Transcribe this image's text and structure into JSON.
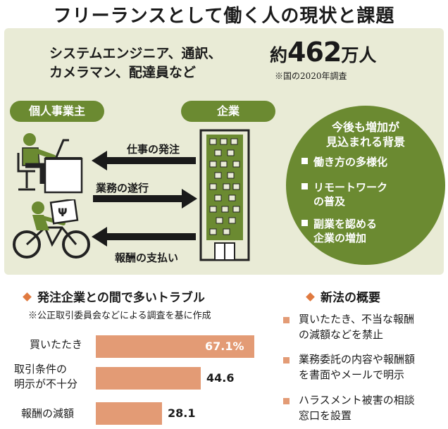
{
  "title": "フリーランスとして働く人の現状と課題",
  "summary": {
    "occupations": [
      "システムエンジニア、通訳、",
      "カメラマン、配達員など"
    ],
    "count_prefix": "約",
    "count_number": "462",
    "count_suffix": "万人",
    "count_note": "※国の2020年調査"
  },
  "labels": {
    "individual": "個人事業主",
    "company": "企業"
  },
  "flows": [
    {
      "label": "仕事の発注",
      "direction": "company-to-individual"
    },
    {
      "label": "業務の遂行",
      "direction": "individual-to-company"
    },
    {
      "label": "報酬の支払い",
      "direction": "company-to-individual"
    }
  ],
  "background": {
    "title_lines": [
      "今後も増加が",
      "見込まれる背景"
    ],
    "items": [
      [
        "働き方の多様化"
      ],
      [
        "リモートワーク",
        "の普及"
      ],
      [
        "副業を認める",
        "企業の増加"
      ]
    ]
  },
  "trouble": {
    "heading": "発注企業との間で多いトラブル",
    "note": "※公正取引委員会などによる調査を基に作成"
  },
  "chart_data": {
    "type": "bar",
    "orientation": "horizontal",
    "categories": [
      "買いたたき",
      "取引条件の明示が不十分",
      "報酬の減額"
    ],
    "category_label_lines": [
      [
        "買いたたき"
      ],
      [
        "取引条件の",
        "明示が不十分"
      ],
      [
        "報酬の減額"
      ]
    ],
    "value_labels": [
      "67.1%",
      "44.6",
      "28.1"
    ],
    "values": [
      67.1,
      44.6,
      28.1
    ],
    "unit": "%",
    "color": "#e39b75"
  },
  "law": {
    "heading": "新法の概要",
    "items": [
      [
        "買いたたき、不当な報酬",
        "の減額などを禁止"
      ],
      [
        "業務委託の内容や報酬額",
        "を書面やメールで明示"
      ],
      [
        "ハラスメント被害の相談",
        "窓口を設置"
      ]
    ]
  },
  "colors": {
    "green": "#6b8a31",
    "panel": "#e9ebd6",
    "orange": "#e07a40",
    "bar": "#e39b75"
  }
}
